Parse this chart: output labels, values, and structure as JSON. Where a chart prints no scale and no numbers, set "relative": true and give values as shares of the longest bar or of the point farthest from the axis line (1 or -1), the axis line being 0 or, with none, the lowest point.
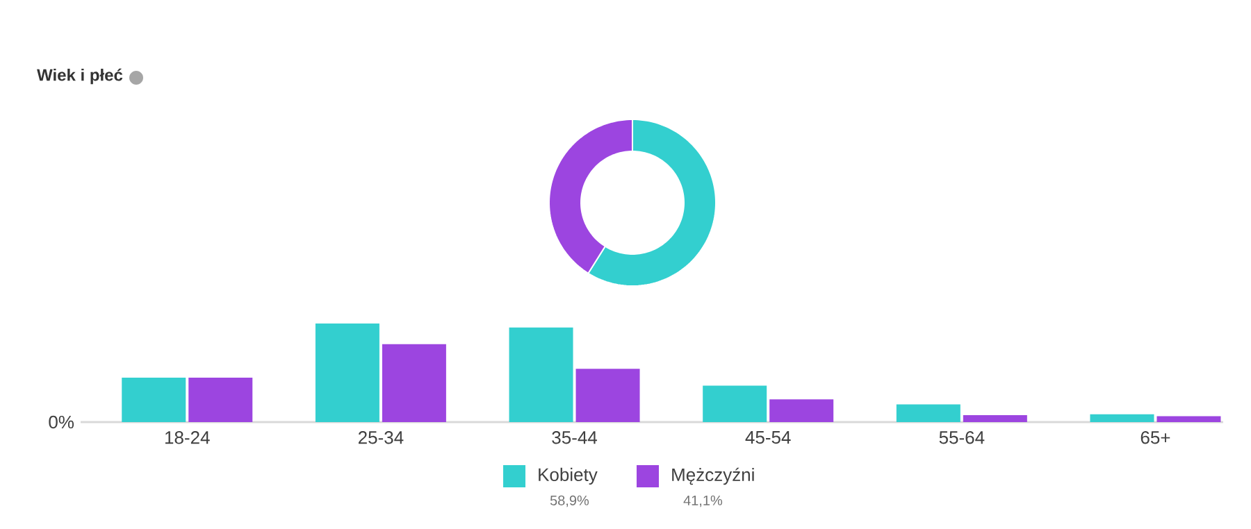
{
  "chart_data": [
    {
      "type": "donut",
      "categories": [
        "Kobiety",
        "Mężczyźni"
      ],
      "values": [
        58.9,
        41.1
      ],
      "colors": [
        "#33cfcf",
        "#9c45e0"
      ],
      "value_labels": [
        "58,9%",
        "41,1%"
      ],
      "legend": "bottom"
    },
    {
      "type": "bar",
      "title": "Wiek i płeć",
      "relative": true,
      "categories": [
        "18-24",
        "25-34",
        "35-44",
        "45-54",
        "55-64",
        "65+"
      ],
      "annotations": [
        "0%"
      ],
      "series": [
        {
          "color": "#33cfcf",
          "values": [
            0.45,
            1,
            0.96,
            0.37,
            0.18,
            0.08
          ]
        },
        {
          "color": "#9c45e0",
          "values": [
            0.45,
            0.79,
            0.54,
            0.23,
            0.07,
            0.06
          ]
        }
      ]
    }
  ]
}
